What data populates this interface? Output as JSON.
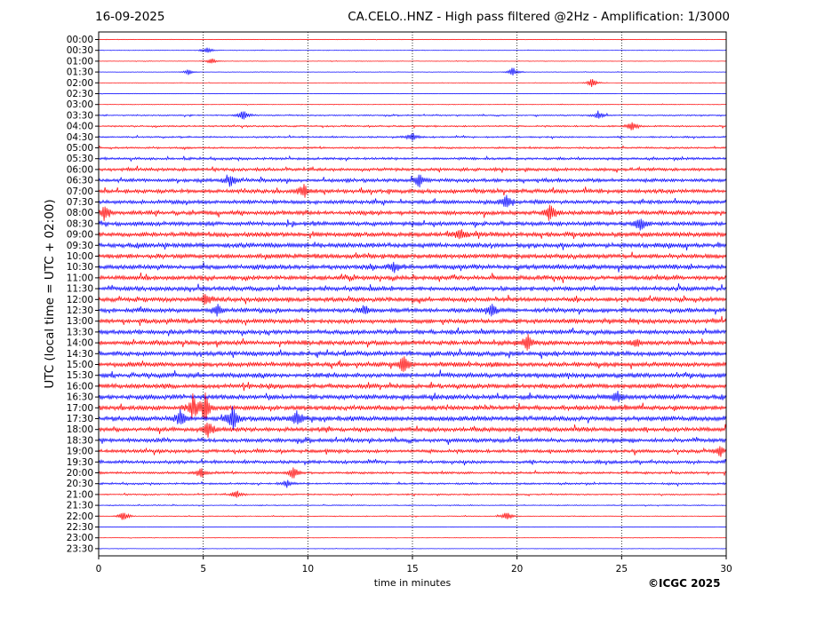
{
  "header": {
    "date": "16-09-2025",
    "title": "CA.CELO..HNZ - High pass filtered @2Hz - Amplification: 1/3000"
  },
  "footer": {
    "copyright": "©ICGC 2025"
  },
  "chart_data": {
    "type": "line",
    "title": "CA.CELO..HNZ - High pass filtered @2Hz - Amplification: 1/3000",
    "xlabel": "time in minutes",
    "ylabel": "UTC (local time = UTC + 02:00)",
    "xlim": [
      0,
      30
    ],
    "x_ticks": [
      "0",
      "5",
      "10",
      "15",
      "20",
      "25",
      "30"
    ],
    "vertical_gridlines_at": [
      5,
      10,
      15,
      20,
      25
    ],
    "grid": "dotted vertical lines every 5 minutes",
    "series_colors": [
      "#ff0000",
      "#0000ff"
    ],
    "rows": [
      "00:00",
      "00:30",
      "01:00",
      "01:30",
      "02:00",
      "02:30",
      "03:00",
      "03:30",
      "04:00",
      "04:30",
      "05:00",
      "05:30",
      "06:00",
      "06:30",
      "07:00",
      "07:30",
      "08:00",
      "08:30",
      "09:00",
      "09:30",
      "10:00",
      "10:30",
      "11:00",
      "11:30",
      "12:00",
      "12:30",
      "13:00",
      "13:30",
      "14:00",
      "14:30",
      "15:00",
      "15:30",
      "16:00",
      "16:30",
      "17:00",
      "17:30",
      "18:00",
      "18:30",
      "19:00",
      "19:30",
      "20:00",
      "20:30",
      "21:00",
      "21:30",
      "22:00",
      "22:30",
      "23:00",
      "23:30"
    ],
    "row_colors": [
      "red",
      "blue",
      "red",
      "blue",
      "red",
      "blue",
      "red",
      "blue",
      "red",
      "blue",
      "red",
      "blue",
      "red",
      "blue",
      "red",
      "blue",
      "red",
      "blue",
      "red",
      "blue",
      "red",
      "blue",
      "red",
      "blue",
      "red",
      "blue",
      "red",
      "blue",
      "red",
      "blue",
      "red",
      "blue",
      "red",
      "blue",
      "red",
      "blue",
      "red",
      "blue",
      "red",
      "blue",
      "red",
      "blue",
      "red",
      "blue",
      "red",
      "blue",
      "red",
      "blue"
    ],
    "row_noise_level": [
      0.3,
      0.3,
      0.3,
      0.3,
      0.3,
      0.3,
      0.4,
      0.8,
      1.0,
      1.0,
      1.2,
      1.6,
      2.0,
      2.3,
      2.5,
      2.5,
      2.7,
      2.7,
      3.0,
      3.0,
      3.0,
      3.0,
      2.8,
      2.8,
      2.8,
      2.8,
      2.8,
      2.8,
      2.9,
      2.9,
      3.0,
      3.0,
      3.0,
      3.0,
      3.0,
      3.2,
      2.8,
      2.5,
      2.2,
      2.0,
      1.5,
      1.2,
      0.9,
      0.6,
      0.5,
      0.3,
      0.3,
      0.3
    ],
    "events": [
      {
        "row": 1,
        "t": 5.2,
        "amp": 5
      },
      {
        "row": 2,
        "t": 5.4,
        "amp": 4
      },
      {
        "row": 3,
        "t": 4.3,
        "amp": 4
      },
      {
        "row": 3,
        "t": 19.8,
        "amp": 6
      },
      {
        "row": 4,
        "t": 23.6,
        "amp": 6
      },
      {
        "row": 7,
        "t": 6.9,
        "amp": 6
      },
      {
        "row": 7,
        "t": 23.9,
        "amp": 5
      },
      {
        "row": 8,
        "t": 25.5,
        "amp": 6
      },
      {
        "row": 9,
        "t": 15.0,
        "amp": 6
      },
      {
        "row": 13,
        "t": 6.3,
        "amp": 7
      },
      {
        "row": 13,
        "t": 15.3,
        "amp": 8
      },
      {
        "row": 14,
        "t": 9.8,
        "amp": 8
      },
      {
        "row": 15,
        "t": 19.5,
        "amp": 8
      },
      {
        "row": 16,
        "t": 0.3,
        "amp": 9
      },
      {
        "row": 16,
        "t": 21.6,
        "amp": 11
      },
      {
        "row": 17,
        "t": 25.9,
        "amp": 9
      },
      {
        "row": 18,
        "t": 17.3,
        "amp": 7
      },
      {
        "row": 21,
        "t": 14.1,
        "amp": 7
      },
      {
        "row": 24,
        "t": 5.1,
        "amp": 8
      },
      {
        "row": 25,
        "t": 5.7,
        "amp": 7
      },
      {
        "row": 25,
        "t": 12.7,
        "amp": 6
      },
      {
        "row": 25,
        "t": 18.8,
        "amp": 7
      },
      {
        "row": 28,
        "t": 20.5,
        "amp": 11
      },
      {
        "row": 28,
        "t": 25.7,
        "amp": 6
      },
      {
        "row": 30,
        "t": 14.6,
        "amp": 11
      },
      {
        "row": 33,
        "t": 24.8,
        "amp": 7
      },
      {
        "row": 34,
        "t": 4.5,
        "amp": 14
      },
      {
        "row": 34,
        "t": 5.1,
        "amp": 16
      },
      {
        "row": 35,
        "t": 6.4,
        "amp": 16
      },
      {
        "row": 35,
        "t": 3.9,
        "amp": 10
      },
      {
        "row": 35,
        "t": 9.5,
        "amp": 10
      },
      {
        "row": 36,
        "t": 5.2,
        "amp": 10
      },
      {
        "row": 38,
        "t": 29.7,
        "amp": 6
      },
      {
        "row": 40,
        "t": 4.9,
        "amp": 6
      },
      {
        "row": 40,
        "t": 9.3,
        "amp": 8
      },
      {
        "row": 41,
        "t": 9.0,
        "amp": 5
      },
      {
        "row": 42,
        "t": 6.6,
        "amp": 5
      },
      {
        "row": 44,
        "t": 1.2,
        "amp": 7
      },
      {
        "row": 44,
        "t": 19.5,
        "amp": 6
      }
    ]
  }
}
